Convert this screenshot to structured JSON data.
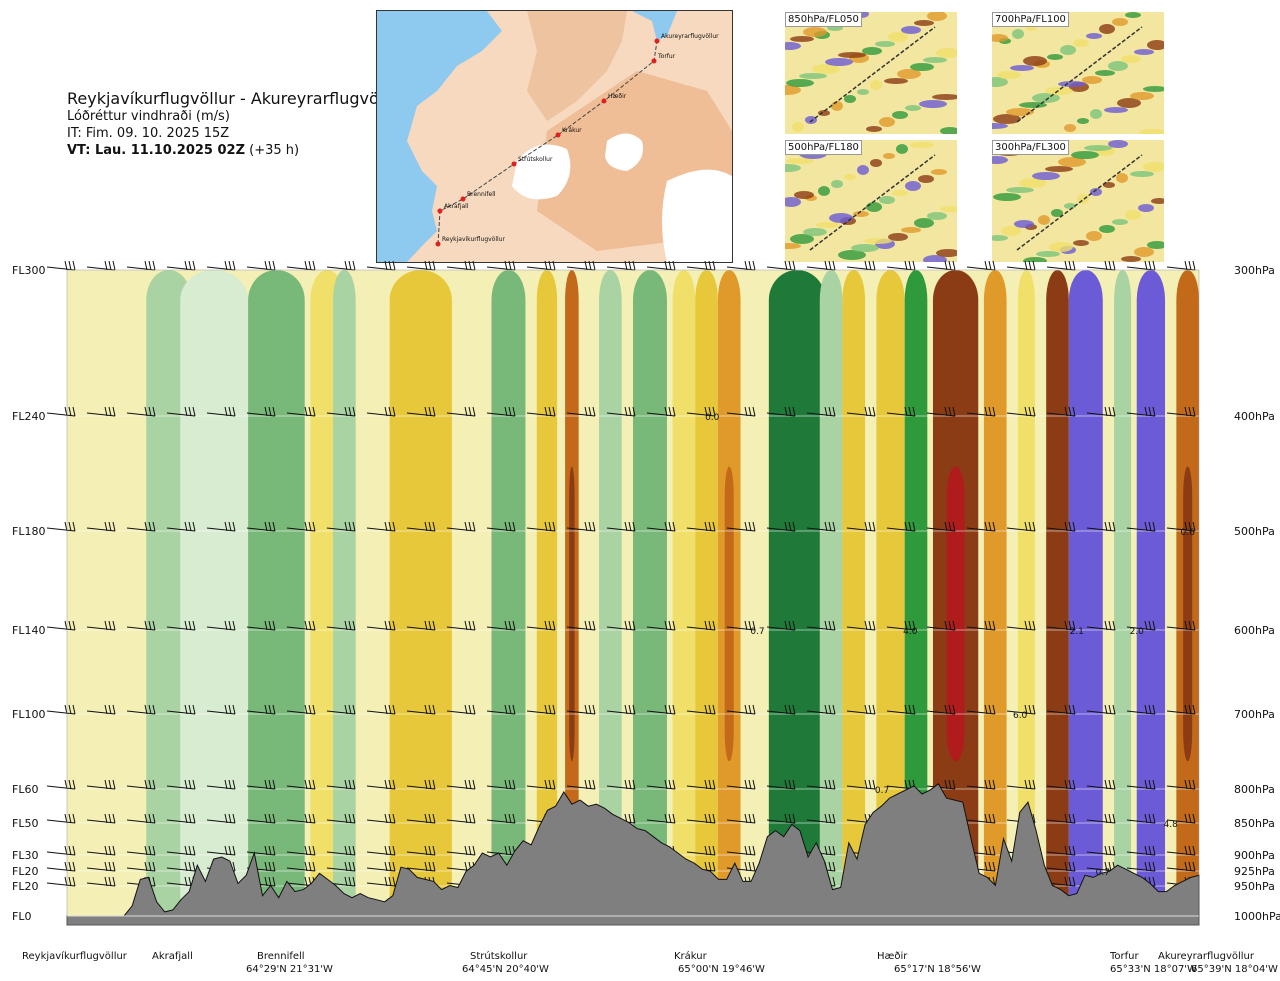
{
  "header": {
    "title": "Reykjavíkurflugvöllur - Akureyrarflugvöllur",
    "subtitle": "Lóðréttur vindhraði (m/s)",
    "issue_time": "IT: Fim. 09. 10. 2025 15Z",
    "valid_prefix": "VT: Lau. 11.10.2025 02Z",
    "valid_suffix": " (+35 h)"
  },
  "map": {
    "labels": [
      "Akureyrarflugvöllur",
      "Torfur",
      "Hæðir",
      "Krákur",
      "Strútskollur",
      "Brennifell",
      "Akrafjall",
      "Reykjavíkurflugvöllur"
    ],
    "colors": {
      "sea": "#8ec9ef",
      "land": "#f6d9bf",
      "high": "#e9a97a",
      "ice": "#ffffff",
      "route": "#444444",
      "point": "#e0201e"
    }
  },
  "thumbnails": [
    {
      "label": "850hPa/FL050"
    },
    {
      "label": "700hPa/FL100"
    },
    {
      "label": "500hPa/FL180"
    },
    {
      "label": "300hPa/FL300"
    }
  ],
  "waypoints": [
    {
      "name": "Reykjavíkurflugvöllur",
      "coord": ""
    },
    {
      "name": "Akrafjall",
      "coord": ""
    },
    {
      "name": "Brennifell",
      "coord": "64°29'N 21°31'W"
    },
    {
      "name": "Strútskollur",
      "coord": "64°45'N 20°40'W"
    },
    {
      "name": "Krákur",
      "coord": "65°00'N 19°46'W"
    },
    {
      "name": "Hæðir",
      "coord": "65°17'N 18°56'W"
    },
    {
      "name": "Torfur",
      "coord": "65°33'N 18°07'W"
    },
    {
      "name": "Akureyrarflugvöllur",
      "coord": "65°39'N 18°04'W"
    }
  ],
  "chart_data": {
    "type": "heatmap",
    "title": "Lóðréttur vindhraði (m/s)",
    "levels": [
      {
        "fl": "FL300",
        "hpa": "300hPa"
      },
      {
        "fl": "FL240",
        "hpa": "400hPa"
      },
      {
        "fl": "FL180",
        "hpa": "500hPa"
      },
      {
        "fl": "FL140",
        "hpa": "600hPa"
      },
      {
        "fl": "FL100",
        "hpa": "700hPa"
      },
      {
        "fl": "FL60",
        "hpa": "800hPa"
      },
      {
        "fl": "FL50",
        "hpa": "850hPa"
      },
      {
        "fl": "FL30",
        "hpa": "900hPa"
      },
      {
        "fl": "FL20",
        "hpa": "925hPa"
      },
      {
        "fl": "FL20",
        "hpa": "950hPa"
      },
      {
        "fl": "FL0",
        "hpa": "1000hPa"
      }
    ],
    "pressure_levels_hpa": [
      300,
      400,
      500,
      600,
      700,
      800,
      850,
      900,
      925,
      950,
      1000
    ],
    "bands": [
      {
        "x": 0.0,
        "w": 0.06,
        "v": 0.05
      },
      {
        "x": 0.07,
        "w": 0.04,
        "v": -0.25
      },
      {
        "x": 0.1,
        "w": 0.06,
        "v": 0.0
      },
      {
        "x": 0.16,
        "w": 0.05,
        "v": -0.3
      },
      {
        "x": 0.215,
        "w": 0.03,
        "v": 0.2
      },
      {
        "x": 0.235,
        "w": 0.02,
        "v": -0.15
      },
      {
        "x": 0.285,
        "w": 0.055,
        "v": 0.4
      },
      {
        "x": 0.345,
        "w": 0.02,
        "v": 0.05
      },
      {
        "x": 0.375,
        "w": 0.03,
        "v": -0.3
      },
      {
        "x": 0.415,
        "w": 0.018,
        "v": 0.35
      },
      {
        "x": 0.44,
        "w": 0.012,
        "v": 1.1
      },
      {
        "x": 0.47,
        "w": 0.02,
        "v": -0.15
      },
      {
        "x": 0.5,
        "w": 0.03,
        "v": -0.35
      },
      {
        "x": 0.535,
        "w": 0.02,
        "v": 0.2
      },
      {
        "x": 0.555,
        "w": 0.02,
        "v": 0.5
      },
      {
        "x": 0.575,
        "w": 0.02,
        "v": 0.75
      },
      {
        "x": 0.62,
        "w": 0.05,
        "v": -0.95
      },
      {
        "x": 0.665,
        "w": 0.02,
        "v": -0.1
      },
      {
        "x": 0.685,
        "w": 0.02,
        "v": 0.35
      },
      {
        "x": 0.715,
        "w": 0.025,
        "v": 0.5
      },
      {
        "x": 0.74,
        "w": 0.02,
        "v": -0.6
      },
      {
        "x": 0.765,
        "w": 0.04,
        "v": 1.5
      },
      {
        "x": 0.81,
        "w": 0.02,
        "v": 0.6
      },
      {
        "x": 0.84,
        "w": 0.015,
        "v": 0.3
      },
      {
        "x": 0.865,
        "w": 0.02,
        "v": 1.3
      },
      {
        "x": 0.885,
        "w": 0.03,
        "v": -1.8
      },
      {
        "x": 0.925,
        "w": 0.015,
        "v": -0.1
      },
      {
        "x": 0.945,
        "w": 0.025,
        "v": -1.7
      },
      {
        "x": 0.98,
        "w": 0.02,
        "v": 1.2
      }
    ],
    "value_labels": [
      {
        "text": "0.0",
        "x": 0.57,
        "p": 400
      },
      {
        "text": "0.7",
        "x": 0.61,
        "p": 600
      },
      {
        "text": "4.0",
        "x": 0.745,
        "p": 600
      },
      {
        "text": "2.1",
        "x": 0.892,
        "p": 600
      },
      {
        "text": "2.0",
        "x": 0.945,
        "p": 600
      },
      {
        "text": "0.6",
        "x": 0.99,
        "p": 500
      },
      {
        "text": "6.0",
        "x": 0.842,
        "p": 700
      },
      {
        "text": "0.7",
        "x": 0.72,
        "p": 800
      },
      {
        "text": "0.7",
        "x": 0.915,
        "p": 925
      },
      {
        "text": "4.8",
        "x": 0.975,
        "p": 850
      }
    ],
    "terrain_heights_ft": [
      0,
      0,
      0,
      0,
      0,
      0,
      0,
      0,
      500,
      1800,
      1900,
      700,
      200,
      300,
      800,
      1200,
      2500,
      1700,
      2800,
      2900,
      2700,
      1600,
      2000,
      3100,
      1000,
      1500,
      900,
      1700,
      1200,
      1300,
      1600,
      2100,
      1800,
      1500,
      1100,
      900,
      1100,
      900,
      800,
      700,
      1000,
      2400,
      2300,
      1900,
      1800,
      1700,
      1300,
      1500,
      1400,
      2200,
      2500,
      3100,
      2900,
      3100,
      2500,
      3200,
      3700,
      3500,
      4400,
      5200,
      5400,
      6100,
      5500,
      5700,
      5400,
      5500,
      5300,
      5000,
      4800,
      4600,
      4300,
      4200,
      3900,
      3600,
      3400,
      3100,
      2800,
      2600,
      2300,
      2200,
      1800,
      1800,
      2600,
      1700,
      1700,
      2600,
      3900,
      4200,
      3900,
      4500,
      4200,
      2900,
      3600,
      2700,
      1300,
      1400,
      3600,
      2800,
      4500,
      5100,
      5400,
      5800,
      6000,
      6200,
      6400,
      6000,
      6200,
      6500,
      5800,
      5700,
      5600,
      3800,
      2100,
      1900,
      1500,
      3800,
      2700,
      5100,
      5600,
      4200,
      2500,
      1500,
      1300,
      1000,
      1100,
      2000,
      1900,
      2100,
      2200,
      2500,
      2300,
      2100,
      1900,
      1600,
      1200,
      1200,
      1500,
      1700,
      1900,
      2000
    ]
  }
}
